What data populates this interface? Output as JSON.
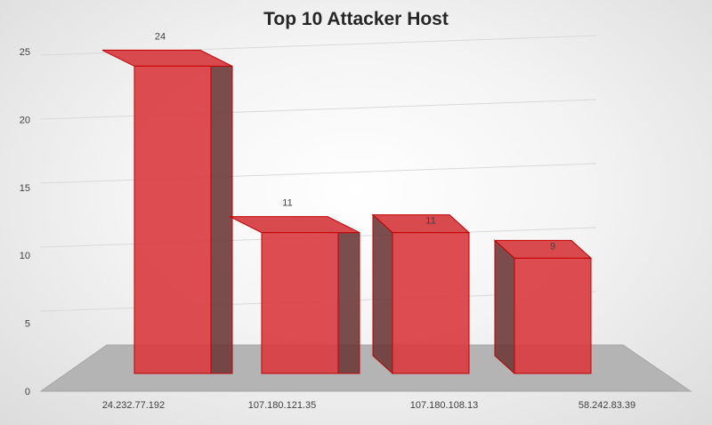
{
  "chart_data": {
    "type": "bar",
    "style": "3d-column",
    "title": "Top 10 Attacker Host",
    "xlabel": "",
    "ylabel": "",
    "categories": [
      "24.232.77.192",
      "107.180.121.35",
      "107.180.108.13",
      "58.242.83.39"
    ],
    "values": [
      24,
      11,
      11,
      9
    ],
    "ylim": [
      0,
      25
    ],
    "yticks": [
      0,
      5,
      10,
      15,
      20,
      25
    ],
    "grid": true,
    "legend": "none",
    "data_labels": true,
    "colors": {
      "bar_front": "#d93d42",
      "bar_side": "#6e3a3a",
      "bar_top": "#d94a4f",
      "bar_edge": "#c00000",
      "floor": "#b4b4b4",
      "gridline": "#d9d9d9"
    }
  }
}
